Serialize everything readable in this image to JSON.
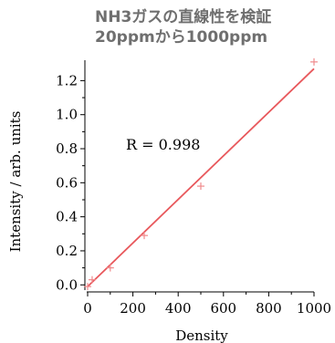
{
  "title_lines": [
    "NH3ガスの直線性を検証",
    "20ppmから1000ppm"
  ],
  "colors": {
    "fit_line": "#e8585c",
    "markers": "#f08a8c",
    "axis": "#000000",
    "title": "#6f6f6f"
  },
  "chart_data": {
    "type": "scatter",
    "xlabel": "Density",
    "ylabel": "Intensity / arb. units",
    "xlim": [
      0,
      1000
    ],
    "ylim": [
      -0.02,
      1.32
    ],
    "x_ticks": [
      0,
      200,
      400,
      600,
      800,
      1000
    ],
    "y_ticks": [
      0.0,
      0.2,
      0.4,
      0.6,
      0.8,
      1.0,
      1.2
    ],
    "x_tick_labels": [
      "0",
      "200",
      "400",
      "600",
      "800",
      "1000"
    ],
    "y_tick_labels": [
      "0.0",
      "0.2",
      "0.4",
      "0.6",
      "0.8",
      "1.0",
      "1.2"
    ],
    "annotation": "R = 0.998",
    "grid": false,
    "series": [
      {
        "points": [
          {
            "x": 0,
            "y": -0.01
          },
          {
            "x": 20,
            "y": 0.03
          },
          {
            "x": 100,
            "y": 0.1
          },
          {
            "x": 250,
            "y": 0.29
          },
          {
            "x": 500,
            "y": 0.58
          },
          {
            "x": 1000,
            "y": 1.31
          }
        ]
      }
    ],
    "fit_line": {
      "x": [
        0,
        1000
      ],
      "y": [
        -0.01,
        1.27
      ]
    }
  }
}
